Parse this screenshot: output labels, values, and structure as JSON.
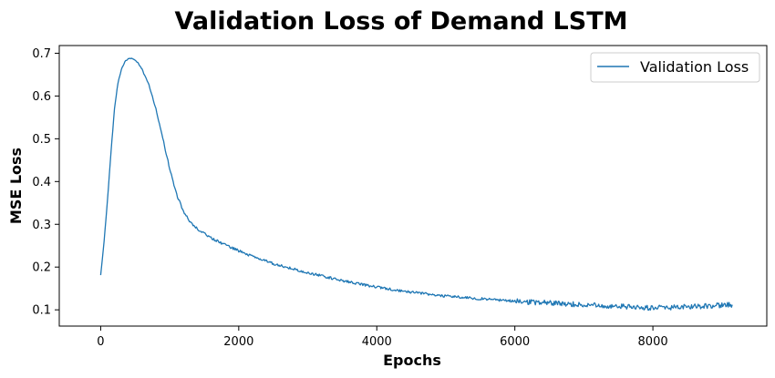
{
  "chart_data": {
    "type": "line",
    "title": "Validation Loss of Demand LSTM",
    "xlabel": "Epochs",
    "ylabel": "MSE Loss",
    "xlim": [
      -600,
      9650
    ],
    "ylim": [
      0.062,
      0.718
    ],
    "xticks": [
      0,
      2000,
      4000,
      6000,
      8000
    ],
    "yticks": [
      0.1,
      0.2,
      0.3,
      0.4,
      0.5,
      0.6,
      0.7
    ],
    "grid": false,
    "legend_position": "top-right",
    "series": [
      {
        "name": "Validation Loss",
        "color": "#1f77b4",
        "x": [
          0,
          50,
          100,
          150,
          200,
          250,
          300,
          350,
          400,
          450,
          500,
          550,
          600,
          700,
          800,
          900,
          1000,
          1100,
          1200,
          1300,
          1400,
          1500,
          1600,
          1700,
          1800,
          2000,
          2200,
          2500,
          2800,
          3000,
          3500,
          4000,
          4500,
          5000,
          5500,
          6000,
          6500,
          7000,
          7500,
          7800,
          8000,
          8200,
          8500,
          8800,
          9000,
          9150
        ],
        "y": [
          0.182,
          0.26,
          0.36,
          0.47,
          0.57,
          0.63,
          0.662,
          0.68,
          0.687,
          0.688,
          0.684,
          0.675,
          0.662,
          0.625,
          0.57,
          0.5,
          0.43,
          0.37,
          0.33,
          0.305,
          0.29,
          0.278,
          0.268,
          0.26,
          0.252,
          0.238,
          0.225,
          0.208,
          0.195,
          0.187,
          0.168,
          0.153,
          0.141,
          0.132,
          0.126,
          0.12,
          0.116,
          0.112,
          0.108,
          0.106,
          0.105,
          0.105,
          0.107,
          0.109,
          0.111,
          0.112
        ]
      }
    ]
  }
}
